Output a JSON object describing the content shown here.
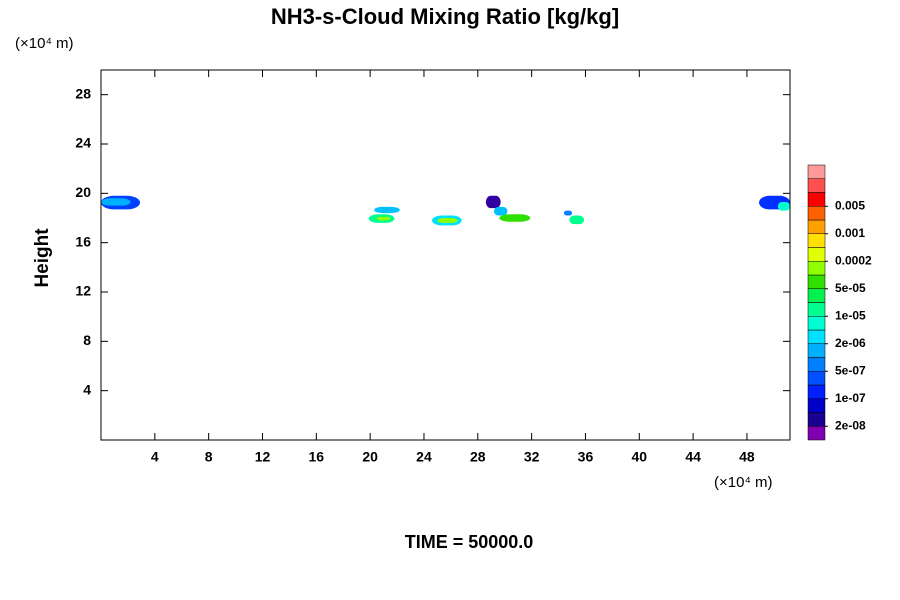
{
  "chart_data": {
    "type": "contour",
    "title": "NH3-s-Cloud Mixing Ratio [kg/kg]",
    "y_label": "Height",
    "y_unit": "(×10⁴ m)",
    "x_unit": "(×10⁴ m)",
    "footer": "TIME = 50000.0",
    "xlim": [
      0,
      51.2
    ],
    "ylim": [
      0,
      30
    ],
    "xticks": [
      4,
      8,
      12,
      16,
      20,
      24,
      28,
      32,
      36,
      40,
      44,
      48
    ],
    "yticks": [
      4,
      8,
      12,
      16,
      20,
      24,
      28
    ],
    "colorbar": {
      "colors": [
        "#8000b0",
        "#1a0090",
        "#0000c8",
        "#0020ff",
        "#0050ff",
        "#0080ff",
        "#00b0ff",
        "#00e0ff",
        "#00ffd0",
        "#00ff90",
        "#00f050",
        "#30e000",
        "#90ff00",
        "#e0ff00",
        "#ffe000",
        "#ffa000",
        "#ff6000",
        "#ff0000",
        "#ff5050",
        "#ff9a9a"
      ],
      "levels": [
        {
          "value": 2e-08,
          "label": "2e-08"
        },
        {
          "value": 1e-07,
          "label": "1e-07"
        },
        {
          "value": 5e-07,
          "label": "5e-07"
        },
        {
          "value": 2e-06,
          "label": "2e-06"
        },
        {
          "value": 1e-05,
          "label": "1e-05"
        },
        {
          "value": 5e-05,
          "label": "5e-05"
        },
        {
          "value": 0.0002,
          "label": "0.0002"
        },
        {
          "value": 0.001,
          "label": "0.001"
        },
        {
          "value": 0.005,
          "label": "0.005"
        }
      ]
    },
    "regions": [
      {
        "x": [
          0,
          2.9
        ],
        "y": [
          18.7,
          19.8
        ],
        "color": "#0040ff"
      },
      {
        "x": [
          0,
          2.2
        ],
        "y": [
          19.0,
          19.6
        ],
        "color": "#00b0ff"
      },
      {
        "x": [
          20.3,
          22.2
        ],
        "y": [
          18.4,
          18.9
        ],
        "color": "#00c0ff"
      },
      {
        "x": [
          19.9,
          21.8
        ],
        "y": [
          17.6,
          18.3
        ],
        "color": "#00ff90"
      },
      {
        "x": [
          20.5,
          21.5
        ],
        "y": [
          17.8,
          18.1
        ],
        "color": "#90ff00"
      },
      {
        "x": [
          24.6,
          26.8
        ],
        "y": [
          17.4,
          18.2
        ],
        "color": "#00e0ff"
      },
      {
        "x": [
          25.0,
          26.5
        ],
        "y": [
          17.6,
          18.0
        ],
        "color": "#90ff00"
      },
      {
        "x": [
          28.6,
          29.7
        ],
        "y": [
          18.8,
          19.8
        ],
        "color": "#3000a0"
      },
      {
        "x": [
          29.2,
          30.2
        ],
        "y": [
          18.2,
          18.9
        ],
        "color": "#00c0ff"
      },
      {
        "x": [
          29.6,
          31.9
        ],
        "y": [
          17.7,
          18.3
        ],
        "color": "#30e000"
      },
      {
        "x": [
          34.4,
          35.0
        ],
        "y": [
          18.2,
          18.6
        ],
        "color": "#0080ff"
      },
      {
        "x": [
          34.8,
          35.9
        ],
        "y": [
          17.5,
          18.2
        ],
        "color": "#00ff90"
      },
      {
        "x": [
          48.9,
          51.2
        ],
        "y": [
          18.7,
          19.8
        ],
        "color": "#0030ff"
      },
      {
        "x": [
          50.3,
          51.2
        ],
        "y": [
          18.6,
          19.3
        ],
        "color": "#00ffd0"
      }
    ]
  }
}
